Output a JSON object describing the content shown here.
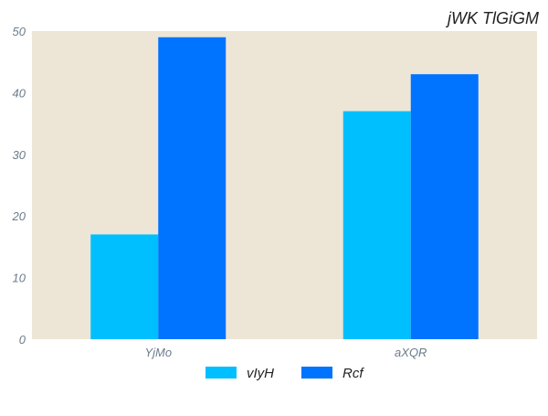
{
  "chart_data": {
    "type": "bar",
    "title": "jWK TlGiGM",
    "xlabel": "",
    "ylabel": "",
    "categories": [
      "YjMo",
      "aXQR"
    ],
    "series": [
      {
        "name": "vIyH",
        "values": [
          17,
          37
        ],
        "color": "#00bfff"
      },
      {
        "name": "Rcf",
        "values": [
          49,
          43
        ],
        "color": "#0073ff"
      }
    ],
    "ylim": [
      0,
      50
    ],
    "yticks": [
      0,
      10,
      20,
      30,
      40,
      50
    ],
    "grid": false,
    "legend_position": "bottom-center",
    "plot_background": "#ede6d6"
  }
}
